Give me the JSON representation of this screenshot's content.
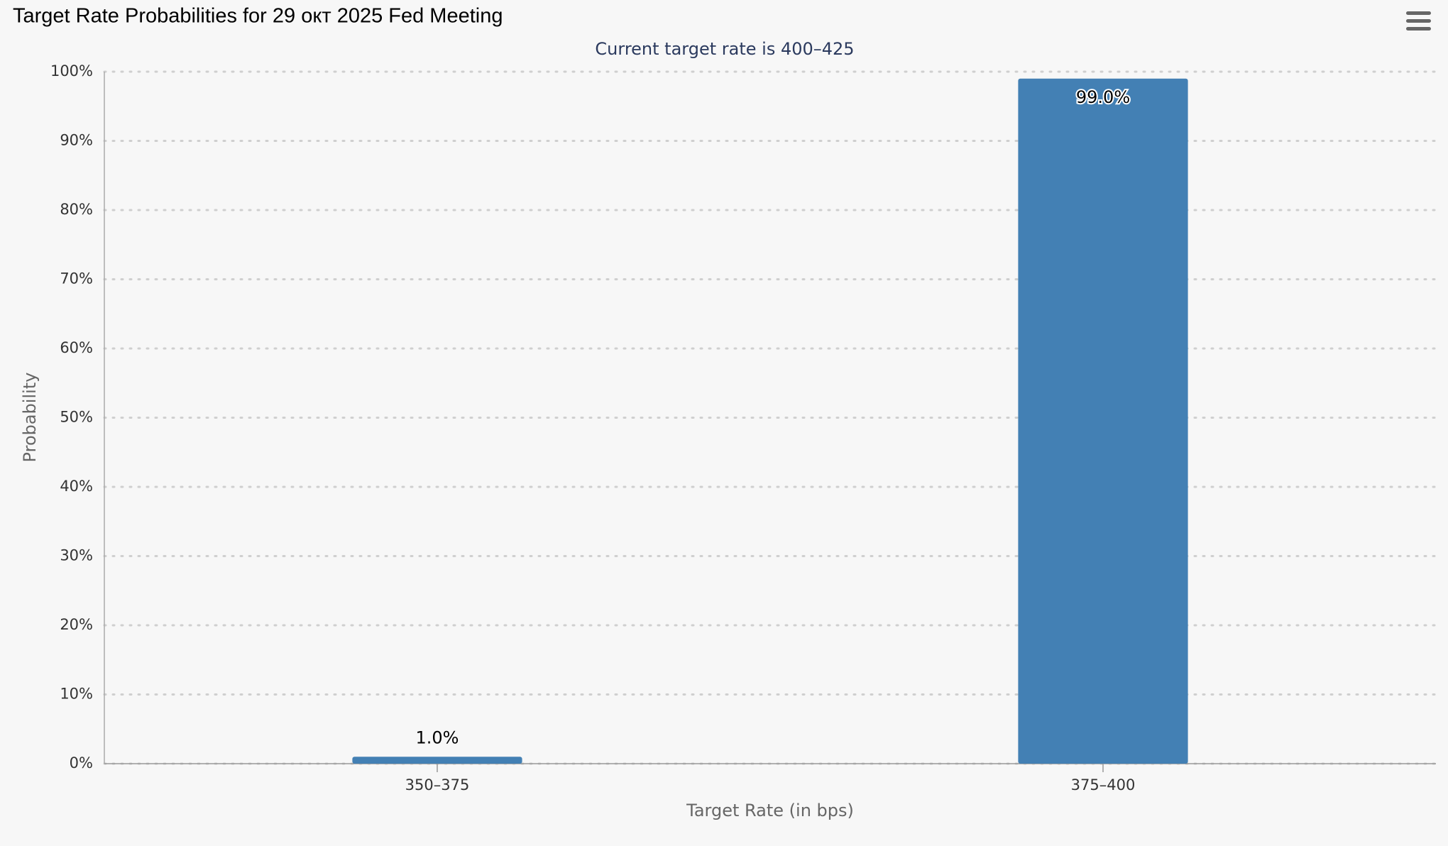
{
  "chart_data": {
    "type": "bar",
    "title": "Target Rate Probabilities for 29 окт 2025 Fed Meeting",
    "subtitle": "Current target rate is 400–425",
    "x_label": "Target Rate (in bps)",
    "y_label": "Probability",
    "categories": [
      "350–375",
      "375–400"
    ],
    "values": [
      1.0,
      99.0
    ],
    "value_labels": [
      "1.0%",
      "99.0%"
    ],
    "color": "#4380b4",
    "ylim": [
      0,
      100
    ],
    "yticks": [
      {
        "value": 0,
        "label": "0%"
      },
      {
        "value": 10,
        "label": "10%"
      },
      {
        "value": 20,
        "label": "20%"
      },
      {
        "value": 30,
        "label": "30%"
      },
      {
        "value": 40,
        "label": "40%"
      },
      {
        "value": 50,
        "label": "50%"
      },
      {
        "value": 60,
        "label": "60%"
      },
      {
        "value": 70,
        "label": "70%"
      },
      {
        "value": 80,
        "label": "80%"
      },
      {
        "value": 90,
        "label": "90%"
      },
      {
        "value": 100,
        "label": "100%"
      }
    ],
    "grid": true
  }
}
